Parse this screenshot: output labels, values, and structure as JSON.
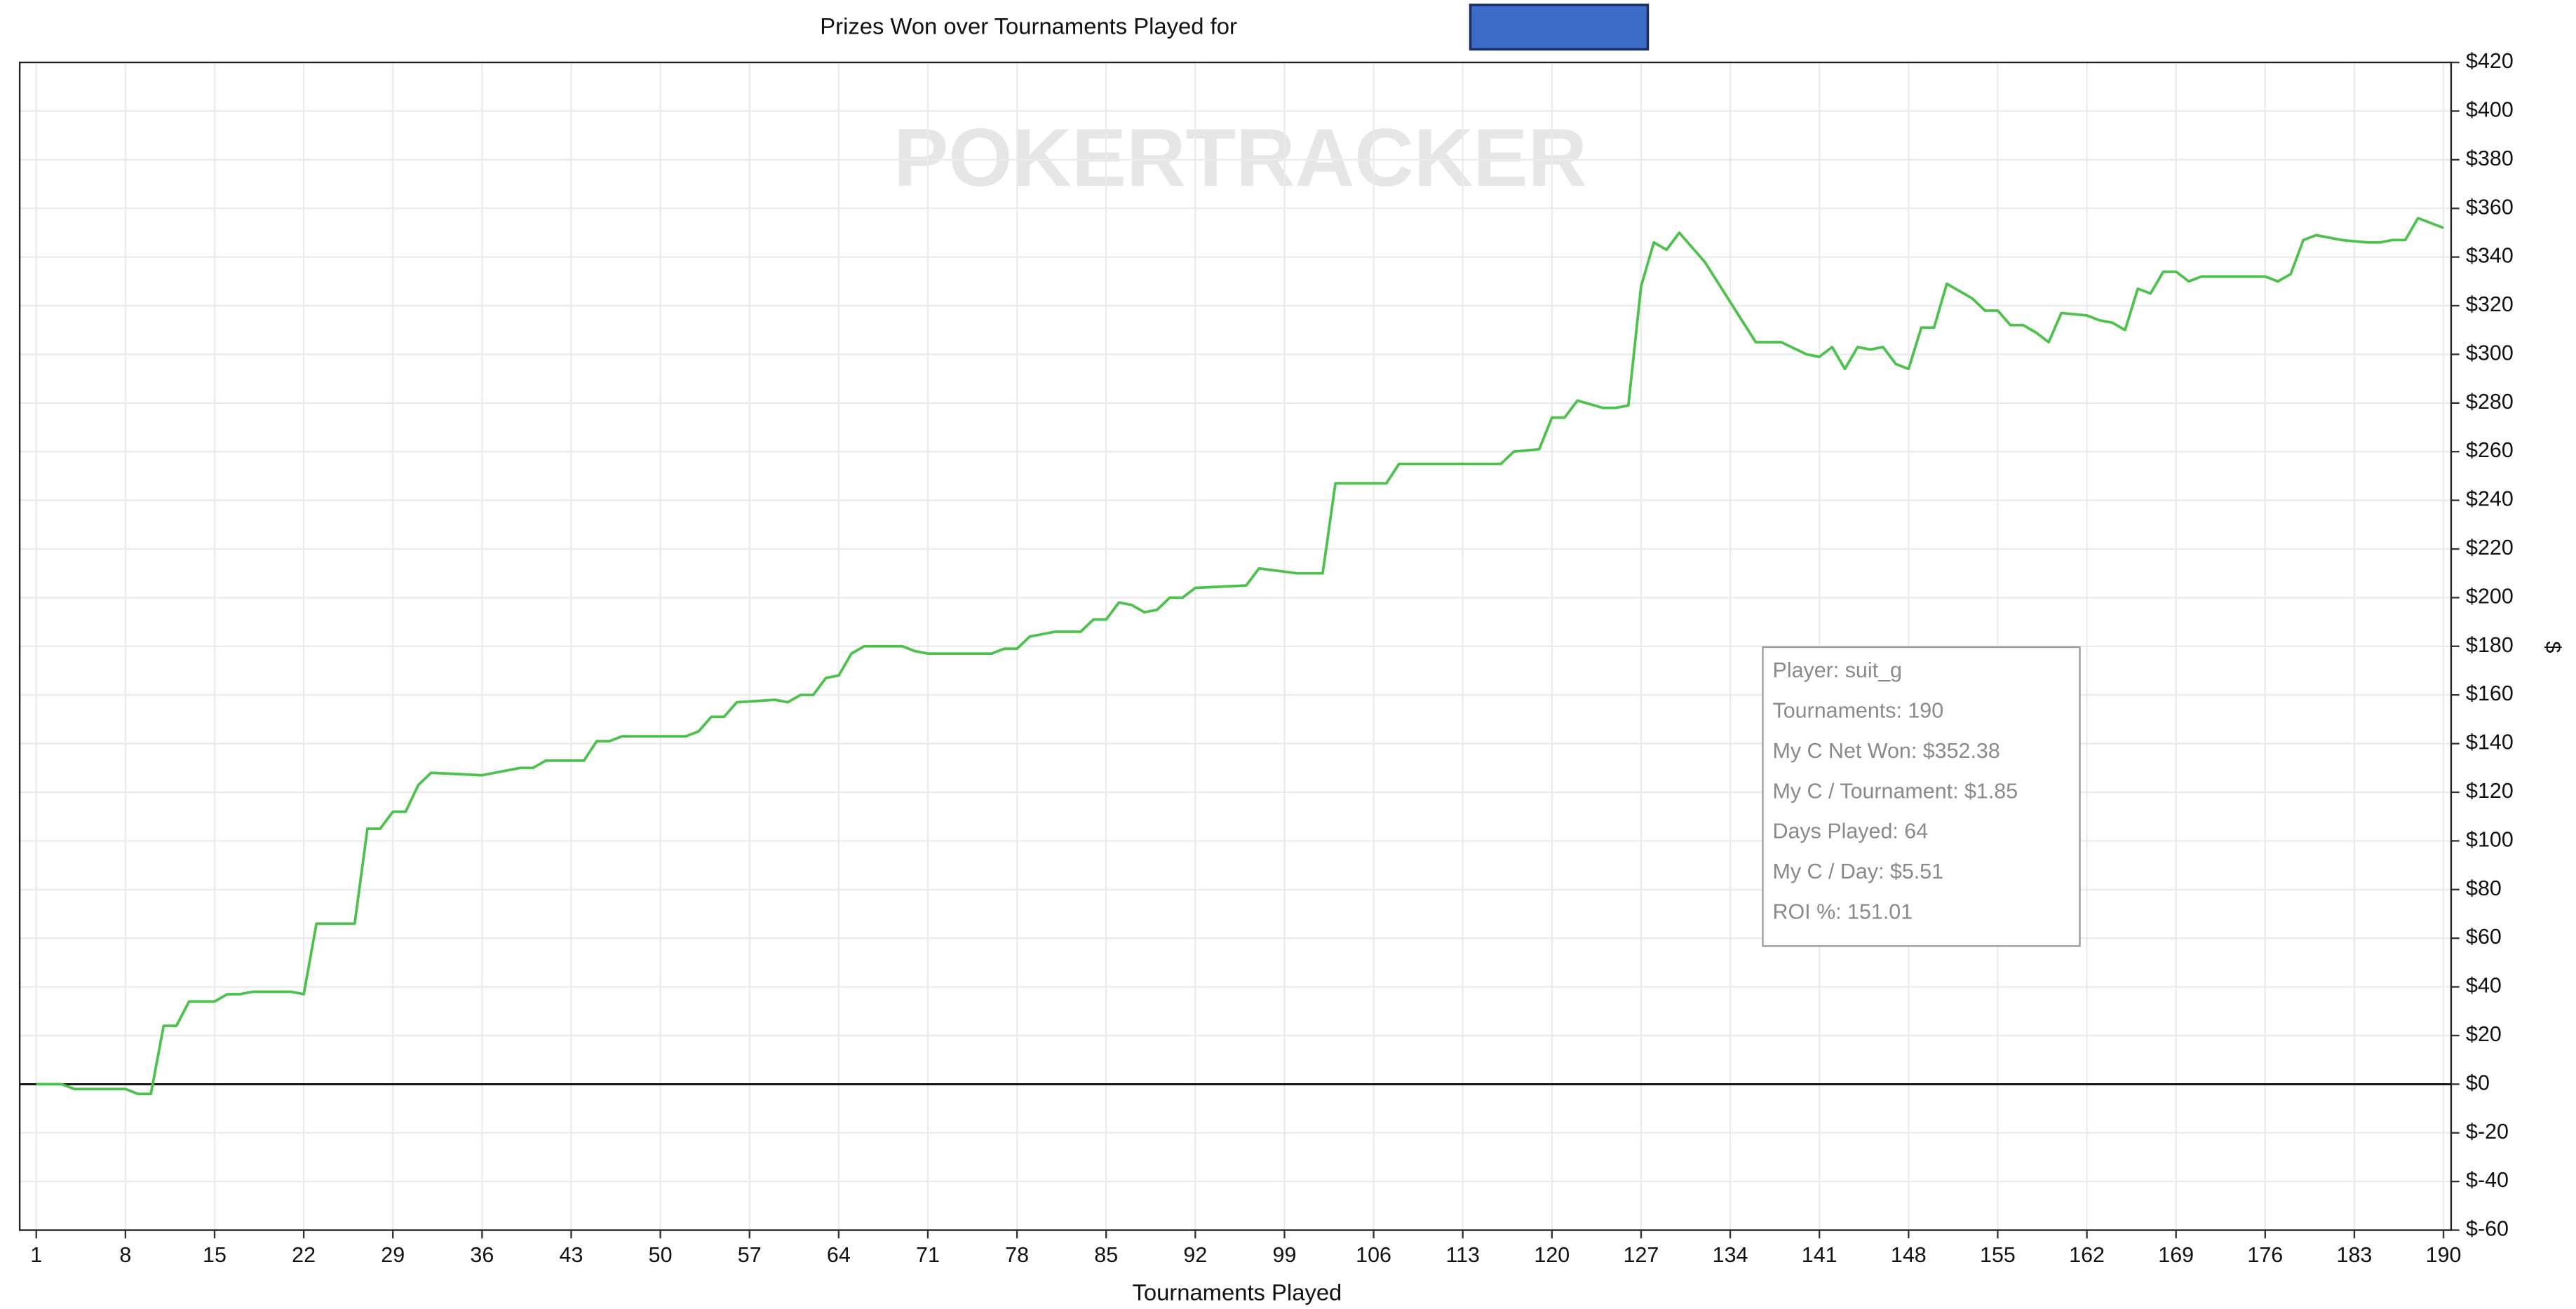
{
  "chart_data": {
    "type": "line",
    "title": "Prizes Won over Tournaments Played for",
    "watermark": "POKERTRACKER",
    "x_label": "Tournaments Played",
    "y_label": "$",
    "color": "#4cc24c",
    "grid": true,
    "xlim": [
      -0.3,
      190.6
    ],
    "ylim": [
      -60,
      420
    ],
    "xticks": [
      1,
      8,
      15,
      22,
      29,
      36,
      43,
      50,
      57,
      64,
      71,
      78,
      85,
      92,
      99,
      106,
      113,
      120,
      127,
      134,
      141,
      148,
      155,
      162,
      169,
      176,
      183,
      190
    ],
    "yticks": [
      {
        "value": -60,
        "label": "$-60"
      },
      {
        "value": -40,
        "label": "$-40"
      },
      {
        "value": -20,
        "label": "$-20"
      },
      {
        "value": 0,
        "label": "$0"
      },
      {
        "value": 20,
        "label": "$20"
      },
      {
        "value": 40,
        "label": "$40"
      },
      {
        "value": 60,
        "label": "$60"
      },
      {
        "value": 80,
        "label": "$80"
      },
      {
        "value": 100,
        "label": "$100"
      },
      {
        "value": 120,
        "label": "$120"
      },
      {
        "value": 140,
        "label": "$140"
      },
      {
        "value": 160,
        "label": "$160"
      },
      {
        "value": 180,
        "label": "$180"
      },
      {
        "value": 200,
        "label": "$200"
      },
      {
        "value": 220,
        "label": "$220"
      },
      {
        "value": 240,
        "label": "$240"
      },
      {
        "value": 260,
        "label": "$260"
      },
      {
        "value": 280,
        "label": "$280"
      },
      {
        "value": 300,
        "label": "$300"
      },
      {
        "value": 320,
        "label": "$320"
      },
      {
        "value": 340,
        "label": "$340"
      },
      {
        "value": 360,
        "label": "$360"
      },
      {
        "value": 380,
        "label": "$380"
      },
      {
        "value": 400,
        "label": "$400"
      },
      {
        "value": 420,
        "label": "$420"
      }
    ],
    "x": [
      1,
      3,
      4,
      8,
      9,
      10,
      11,
      12,
      13,
      15,
      16,
      17,
      18,
      21,
      22,
      23,
      26,
      27,
      28,
      29,
      30,
      31,
      32,
      36,
      37,
      39,
      40,
      41,
      44,
      45,
      46,
      47,
      52,
      53,
      54,
      55,
      56,
      59,
      60,
      61,
      62,
      63,
      64,
      65,
      66,
      69,
      70,
      71,
      76,
      77,
      78,
      79,
      80,
      81,
      83,
      84,
      85,
      86,
      87,
      88,
      89,
      90,
      91,
      92,
      96,
      97,
      100,
      102,
      103,
      107,
      108,
      116,
      117,
      119,
      120,
      121,
      122,
      124,
      125,
      126,
      127,
      128,
      129,
      130,
      132,
      136,
      138,
      140,
      141,
      142,
      143,
      144,
      145,
      146,
      147,
      148,
      149,
      150,
      151,
      153,
      154,
      155,
      156,
      157,
      158,
      159,
      160,
      162,
      163,
      164,
      165,
      166,
      167,
      168,
      169,
      170,
      171,
      176,
      177,
      178,
      179,
      180,
      182,
      184,
      185,
      186,
      187,
      188,
      190
    ],
    "values": [
      0,
      0,
      -2,
      -2,
      -4,
      -4,
      24,
      24,
      34,
      34,
      37,
      37,
      38,
      38,
      37,
      66,
      66,
      105,
      105,
      112,
      112,
      123,
      128,
      127,
      128,
      130,
      130,
      133,
      133,
      141,
      141,
      143,
      143,
      145,
      151,
      151,
      157,
      158,
      157,
      160,
      160,
      167,
      168,
      177,
      180,
      180,
      178,
      177,
      177,
      179,
      179,
      184,
      185,
      186,
      186,
      191,
      191,
      198,
      197,
      194,
      195,
      200,
      200,
      204,
      205,
      212,
      210,
      210,
      247,
      247,
      255,
      255,
      260,
      261,
      274,
      274,
      281,
      278,
      278,
      279,
      328,
      346,
      343,
      350,
      338,
      305,
      305,
      300,
      299,
      303,
      294,
      303,
      302,
      303,
      296,
      294,
      311,
      311,
      329,
      323,
      318,
      318,
      312,
      312,
      309,
      305,
      317,
      316,
      314,
      313,
      310,
      327,
      325,
      334,
      334,
      330,
      332,
      332,
      330,
      333,
      347,
      349,
      347,
      346,
      346,
      347,
      347,
      356,
      352
    ],
    "tooltip": [
      "Player: suit_g",
      "Tournaments: 190",
      "My C Net Won: $352.38",
      "My C / Tournament: $1.85",
      "Days Played: 64",
      "My C / Day: $5.51",
      "ROI %: 151.01"
    ]
  }
}
